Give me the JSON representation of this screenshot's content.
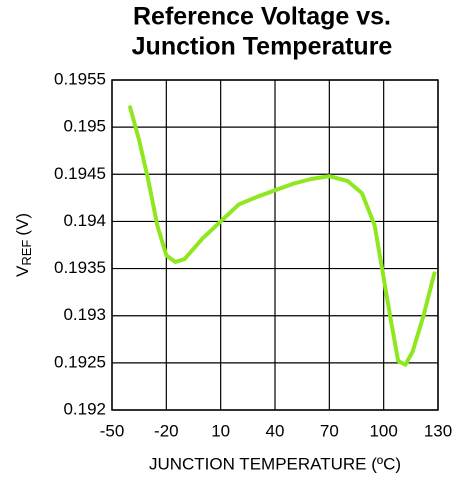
{
  "chart_data": {
    "type": "line",
    "title": [
      "Reference Voltage vs.",
      "Junction Temperature"
    ],
    "xlabel": "JUNCTION TEMPERATURE (ºC)",
    "ylabel": {
      "main": "V",
      "sub": "REF",
      "unit": "(V)"
    },
    "xlim": [
      -50,
      130
    ],
    "xticks": [
      -50,
      -20,
      10,
      40,
      70,
      100,
      130
    ],
    "ylim": [
      0.192,
      0.1955
    ],
    "yticks": [
      0.1955,
      0.195,
      0.1945,
      0.194,
      0.1935,
      0.193,
      0.1925,
      0.192
    ],
    "grid": true,
    "series": [
      {
        "color": "#8fe81f",
        "x": [
          -40,
          -35,
          -30,
          -25,
          -20,
          -15,
          -10,
          -5,
          0,
          10,
          20,
          30,
          40,
          50,
          60,
          70,
          80,
          88,
          95,
          100,
          104,
          108,
          112,
          116,
          122,
          128
        ],
        "values": [
          0.19521,
          0.19486,
          0.19444,
          0.19396,
          0.19364,
          0.19357,
          0.1936,
          0.19371,
          0.19382,
          0.194,
          0.19418,
          0.19426,
          0.19433,
          0.1944,
          0.19445,
          0.19448,
          0.19443,
          0.1943,
          0.19396,
          0.1934,
          0.19295,
          0.19252,
          0.19248,
          0.19262,
          0.193,
          0.19345
        ]
      }
    ]
  }
}
